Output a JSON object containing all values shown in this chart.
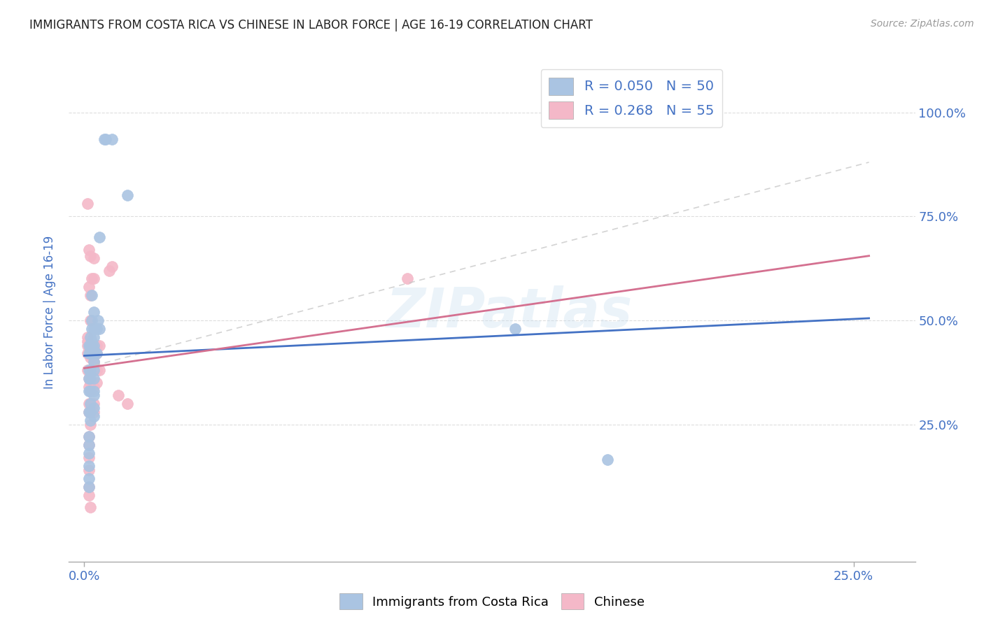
{
  "title": "IMMIGRANTS FROM COSTA RICA VS CHINESE IN LABOR FORCE | AGE 16-19 CORRELATION CHART",
  "source": "Source: ZipAtlas.com",
  "ylabel_label": "In Labor Force | Age 16-19",
  "ytick_right_labels": [
    "25.0%",
    "50.0%",
    "75.0%",
    "100.0%"
  ],
  "ytick_right_values": [
    0.25,
    0.5,
    0.75,
    1.0
  ],
  "xtick_labels": [
    "0.0%",
    "25.0%"
  ],
  "xtick_values": [
    0.0,
    0.25
  ],
  "xmin": -0.005,
  "xmax": 0.27,
  "ymin": -0.08,
  "ymax": 1.12,
  "legend_label_cr": "R = 0.050   N = 50",
  "legend_label_ch": "R = 0.268   N = 55",
  "watermark": "ZIPatlas",
  "costa_rica_color": "#aac4e2",
  "chinese_color": "#f4b8c8",
  "trend_costa_rica_color": "#4472c4",
  "trend_chinese_color": "#d47090",
  "trend_chinese_dashed_color": "#c8c8c8",
  "background_color": "#ffffff",
  "title_color": "#222222",
  "axis_label_color": "#4472c4",
  "grid_color": "#dddddd",
  "legend_cr_line_color": "#4472c4",
  "legend_ch_line_color": "#d47090",
  "cr_trend_x": [
    0.0,
    0.255
  ],
  "cr_trend_y": [
    0.415,
    0.505
  ],
  "ch_trend_x": [
    0.0,
    0.255
  ],
  "ch_trend_y": [
    0.385,
    0.655
  ],
  "ch_dashed_trend_x": [
    0.0,
    0.255
  ],
  "ch_dashed_trend_y": [
    0.385,
    0.88
  ],
  "costa_rica_points": [
    [
      0.0065,
      0.935
    ],
    [
      0.007,
      0.935
    ],
    [
      0.009,
      0.935
    ],
    [
      0.014,
      0.8
    ],
    [
      0.005,
      0.7
    ],
    [
      0.0025,
      0.56
    ],
    [
      0.003,
      0.52
    ],
    [
      0.0045,
      0.5
    ],
    [
      0.0025,
      0.5
    ],
    [
      0.0025,
      0.48
    ],
    [
      0.003,
      0.48
    ],
    [
      0.004,
      0.48
    ],
    [
      0.005,
      0.48
    ],
    [
      0.002,
      0.46
    ],
    [
      0.003,
      0.46
    ],
    [
      0.0025,
      0.45
    ],
    [
      0.003,
      0.44
    ],
    [
      0.0015,
      0.44
    ],
    [
      0.002,
      0.44
    ],
    [
      0.0025,
      0.44
    ],
    [
      0.003,
      0.43
    ],
    [
      0.0015,
      0.42
    ],
    [
      0.002,
      0.42
    ],
    [
      0.003,
      0.42
    ],
    [
      0.004,
      0.42
    ],
    [
      0.003,
      0.4
    ],
    [
      0.003,
      0.38
    ],
    [
      0.0015,
      0.38
    ],
    [
      0.002,
      0.38
    ],
    [
      0.0015,
      0.36
    ],
    [
      0.002,
      0.36
    ],
    [
      0.003,
      0.36
    ],
    [
      0.003,
      0.33
    ],
    [
      0.002,
      0.33
    ],
    [
      0.0015,
      0.33
    ],
    [
      0.003,
      0.32
    ],
    [
      0.002,
      0.3
    ],
    [
      0.003,
      0.29
    ],
    [
      0.002,
      0.28
    ],
    [
      0.0015,
      0.28
    ],
    [
      0.002,
      0.26
    ],
    [
      0.0015,
      0.22
    ],
    [
      0.003,
      0.27
    ],
    [
      0.0015,
      0.2
    ],
    [
      0.0015,
      0.18
    ],
    [
      0.0015,
      0.15
    ],
    [
      0.0015,
      0.12
    ],
    [
      0.0015,
      0.1
    ],
    [
      0.14,
      0.48
    ],
    [
      0.17,
      0.165
    ]
  ],
  "chinese_points": [
    [
      0.001,
      0.78
    ],
    [
      0.0015,
      0.67
    ],
    [
      0.002,
      0.655
    ],
    [
      0.0025,
      0.6
    ],
    [
      0.003,
      0.65
    ],
    [
      0.003,
      0.6
    ],
    [
      0.008,
      0.62
    ],
    [
      0.009,
      0.63
    ],
    [
      0.0015,
      0.58
    ],
    [
      0.002,
      0.56
    ],
    [
      0.002,
      0.5
    ],
    [
      0.004,
      0.44
    ],
    [
      0.0015,
      0.44
    ],
    [
      0.002,
      0.44
    ],
    [
      0.0025,
      0.44
    ],
    [
      0.003,
      0.44
    ],
    [
      0.005,
      0.44
    ],
    [
      0.003,
      0.42
    ],
    [
      0.004,
      0.42
    ],
    [
      0.002,
      0.43
    ],
    [
      0.003,
      0.42
    ],
    [
      0.002,
      0.41
    ],
    [
      0.003,
      0.4
    ],
    [
      0.002,
      0.38
    ],
    [
      0.003,
      0.38
    ],
    [
      0.004,
      0.38
    ],
    [
      0.005,
      0.38
    ],
    [
      0.0015,
      0.36
    ],
    [
      0.002,
      0.35
    ],
    [
      0.003,
      0.34
    ],
    [
      0.004,
      0.35
    ],
    [
      0.0015,
      0.34
    ],
    [
      0.002,
      0.33
    ],
    [
      0.003,
      0.3
    ],
    [
      0.002,
      0.3
    ],
    [
      0.0015,
      0.3
    ],
    [
      0.003,
      0.28
    ],
    [
      0.002,
      0.28
    ],
    [
      0.0015,
      0.28
    ],
    [
      0.002,
      0.25
    ],
    [
      0.0015,
      0.22
    ],
    [
      0.0015,
      0.2
    ],
    [
      0.0015,
      0.17
    ],
    [
      0.0015,
      0.14
    ],
    [
      0.0015,
      0.1
    ],
    [
      0.0015,
      0.08
    ],
    [
      0.001,
      0.44
    ],
    [
      0.001,
      0.42
    ],
    [
      0.001,
      0.38
    ],
    [
      0.002,
      0.05
    ],
    [
      0.011,
      0.32
    ],
    [
      0.014,
      0.3
    ],
    [
      0.105,
      0.6
    ],
    [
      0.001,
      0.45
    ],
    [
      0.001,
      0.46
    ]
  ]
}
